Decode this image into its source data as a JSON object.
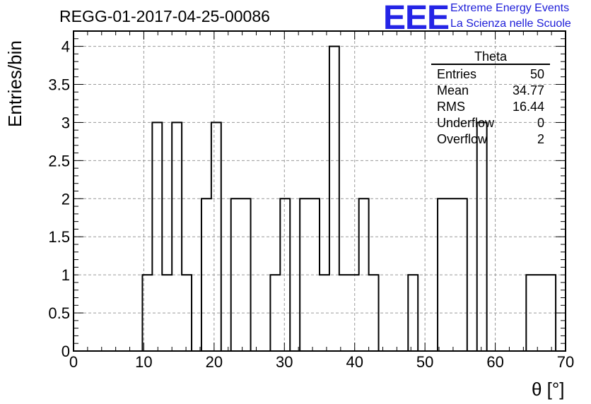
{
  "title": "REGG-01-2017-04-25-00086",
  "logo": {
    "text": "EEE",
    "line1": "Extreme Energy Events",
    "line2": "La Scienza nelle Scuole",
    "color": "#2424e6"
  },
  "stats": {
    "name": "Theta",
    "rows": [
      {
        "label": "Entries",
        "value": "50"
      },
      {
        "label": "Mean",
        "value": "34.77"
      },
      {
        "label": "RMS",
        "value": "16.44"
      },
      {
        "label": "Underflow",
        "value": "0"
      },
      {
        "label": "Overflow",
        "value": "2"
      }
    ]
  },
  "chart_data": {
    "type": "histogram",
    "title": "REGG-01-2017-04-25-00086",
    "xlabel": "θ [°]",
    "ylabel": "Entries/bin",
    "xlim": [
      0,
      70
    ],
    "ylim": [
      0,
      4.2
    ],
    "grid": true,
    "bin_width": 1.4,
    "x_ticks": [
      0,
      10,
      20,
      30,
      40,
      50,
      60,
      70
    ],
    "y_ticks": [
      0,
      0.5,
      1,
      1.5,
      2,
      2.5,
      3,
      3.5,
      4
    ],
    "y_tick_labels": [
      "0",
      "0.5",
      "1",
      "1.5",
      "2",
      "2.5",
      "3",
      "3.5",
      "4"
    ],
    "bins": [
      {
        "x0": 9.8,
        "x1": 11.2,
        "value": 1
      },
      {
        "x0": 11.2,
        "x1": 12.6,
        "value": 3
      },
      {
        "x0": 12.6,
        "x1": 14.0,
        "value": 1
      },
      {
        "x0": 14.0,
        "x1": 15.4,
        "value": 3
      },
      {
        "x0": 15.4,
        "x1": 16.8,
        "value": 1
      },
      {
        "x0": 16.8,
        "x1": 18.2,
        "value": 0
      },
      {
        "x0": 18.2,
        "x1": 19.6,
        "value": 2
      },
      {
        "x0": 19.6,
        "x1": 21.0,
        "value": 3
      },
      {
        "x0": 21.0,
        "x1": 22.4,
        "value": 0
      },
      {
        "x0": 22.4,
        "x1": 25.2,
        "value": 2
      },
      {
        "x0": 25.2,
        "x1": 28.0,
        "value": 0
      },
      {
        "x0": 28.0,
        "x1": 29.4,
        "value": 1
      },
      {
        "x0": 29.4,
        "x1": 30.8,
        "value": 2
      },
      {
        "x0": 30.8,
        "x1": 32.2,
        "value": 0
      },
      {
        "x0": 32.2,
        "x1": 35.0,
        "value": 2
      },
      {
        "x0": 35.0,
        "x1": 36.4,
        "value": 1
      },
      {
        "x0": 36.4,
        "x1": 37.8,
        "value": 4
      },
      {
        "x0": 37.8,
        "x1": 40.6,
        "value": 1
      },
      {
        "x0": 40.6,
        "x1": 42.0,
        "value": 2
      },
      {
        "x0": 42.0,
        "x1": 43.4,
        "value": 1
      },
      {
        "x0": 43.4,
        "x1": 47.6,
        "value": 0
      },
      {
        "x0": 47.6,
        "x1": 49.0,
        "value": 1
      },
      {
        "x0": 49.0,
        "x1": 51.8,
        "value": 0
      },
      {
        "x0": 51.8,
        "x1": 56.0,
        "value": 2
      },
      {
        "x0": 56.0,
        "x1": 57.4,
        "value": 0
      },
      {
        "x0": 57.4,
        "x1": 58.8,
        "value": 3
      },
      {
        "x0": 58.8,
        "x1": 64.4,
        "value": 0
      },
      {
        "x0": 64.4,
        "x1": 68.6,
        "value": 1
      }
    ]
  }
}
